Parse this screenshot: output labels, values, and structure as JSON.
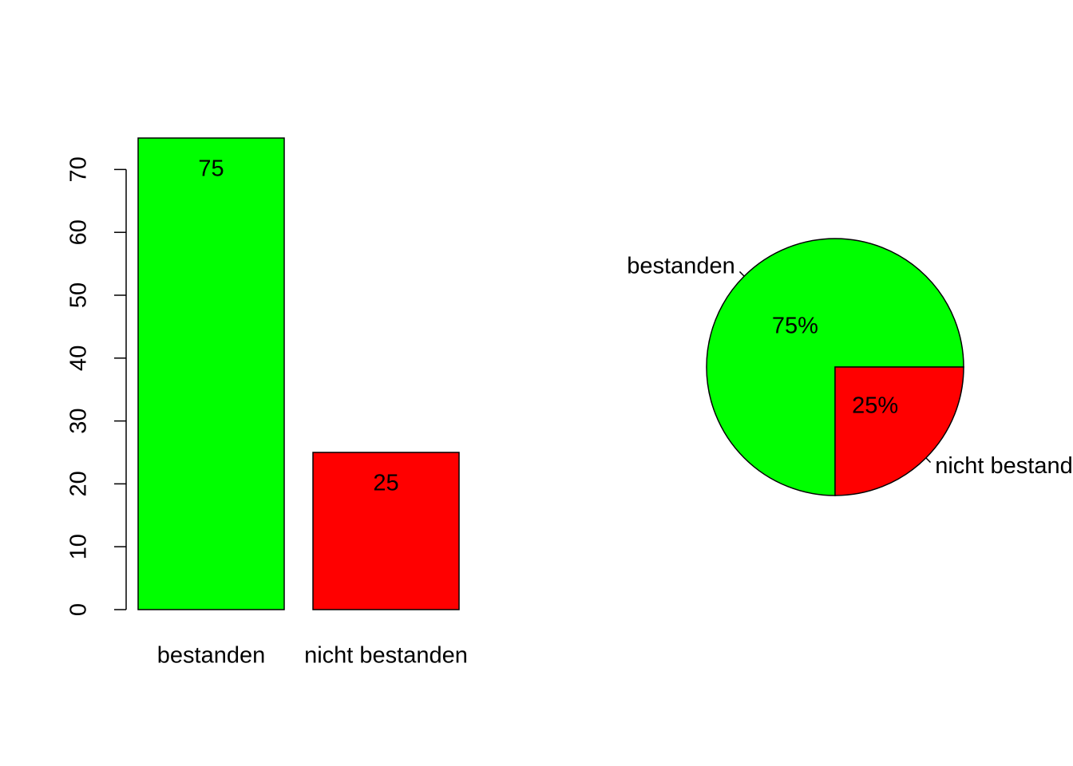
{
  "chart_data": [
    {
      "type": "bar",
      "categories": [
        "bestanden",
        "nicht bestanden"
      ],
      "values": [
        75,
        25
      ],
      "colors": [
        "#00ff00",
        "#ff0000"
      ],
      "ylim": [
        0,
        75
      ],
      "yticks": [
        0,
        10,
        20,
        30,
        40,
        50,
        60,
        70
      ]
    },
    {
      "type": "pie",
      "categories": [
        "bestanden",
        "nicht bestanden"
      ],
      "values": [
        75,
        25
      ],
      "value_labels": [
        "75%",
        "25%"
      ],
      "colors": [
        "#00ff00",
        "#ff0000"
      ]
    }
  ]
}
